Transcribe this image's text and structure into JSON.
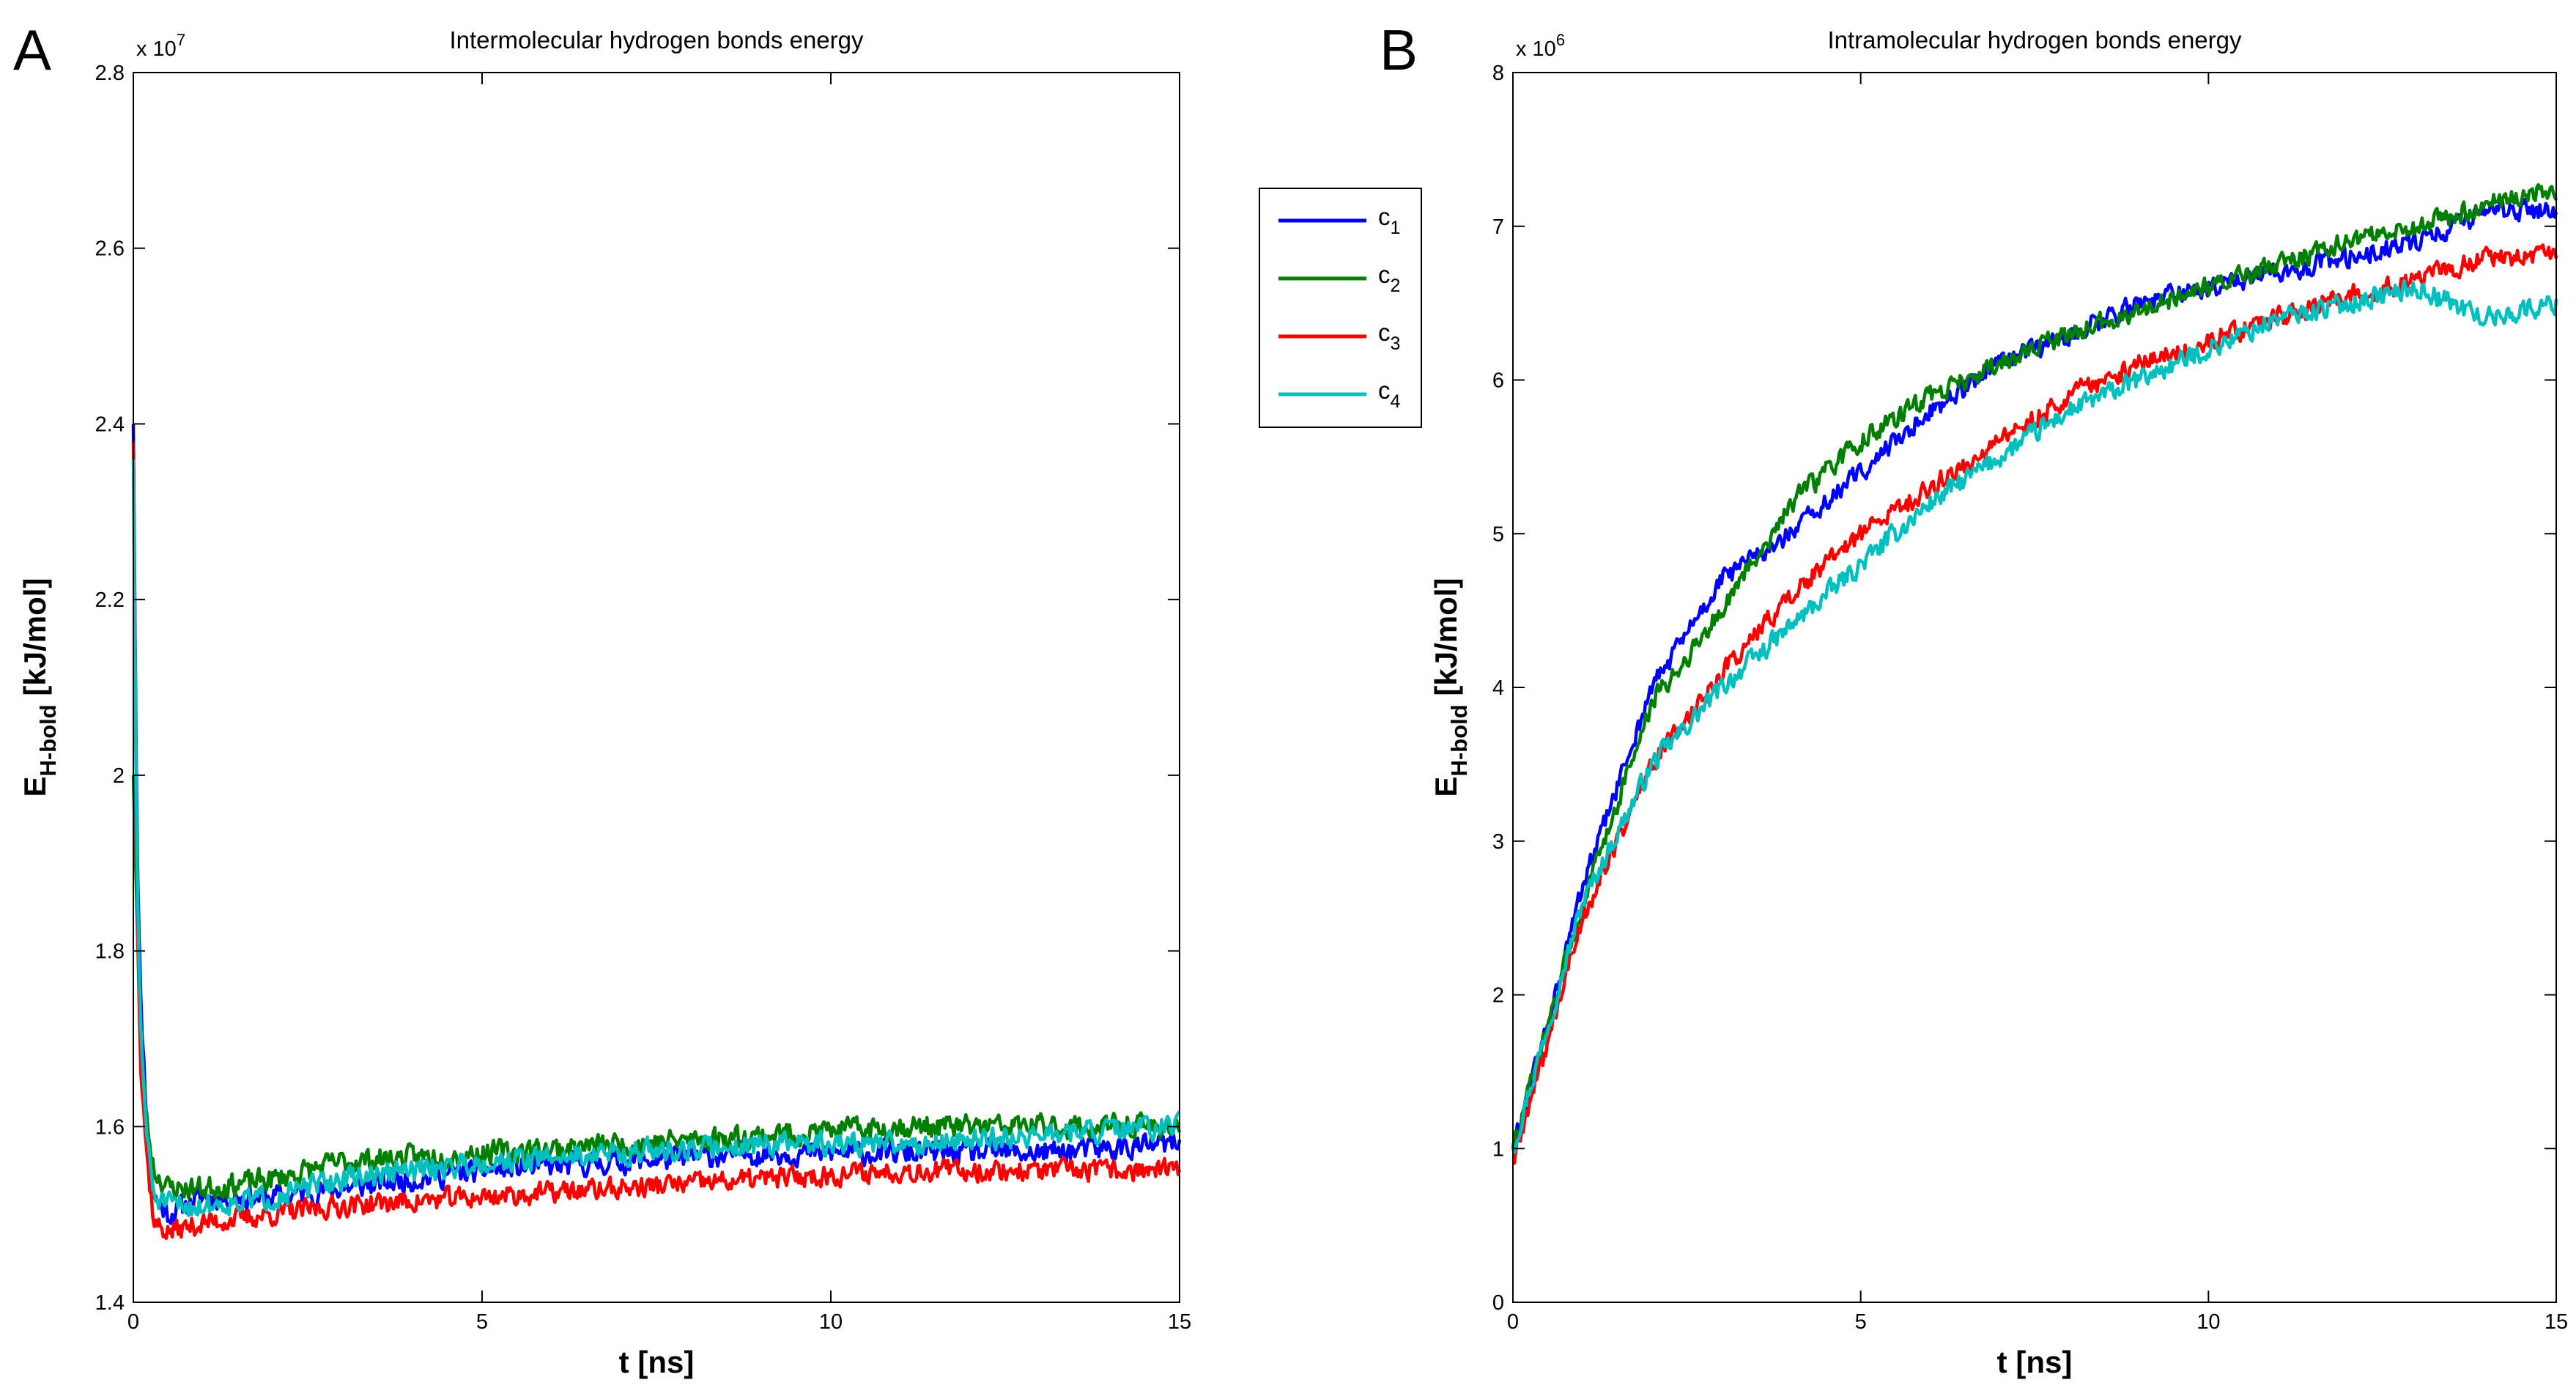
{
  "chart_data": [
    {
      "type": "line",
      "panel_label": "A",
      "title": "Intermolecular hydrogen bonds energy",
      "xlabel": "t [ns]",
      "ylabel_main": "E",
      "ylabel_sub": "H-bold",
      "ylabel_unit": " [kJ/mol]",
      "multiplier_base": "x 10",
      "multiplier_exp": "7",
      "xlim": [
        0,
        15
      ],
      "ylim": [
        1.4,
        2.8
      ],
      "xticks": [
        0,
        5,
        10,
        15
      ],
      "xtick_labels": [
        "0",
        "5",
        "10",
        "15"
      ],
      "yticks": [
        1.4,
        1.6,
        1.8,
        2.0,
        2.2,
        2.4,
        2.6,
        2.8
      ],
      "ytick_labels": [
        "1.4",
        "1.6",
        "1.8",
        "2",
        "2.2",
        "2.4",
        "2.6",
        "2.8"
      ],
      "series": [
        {
          "name": "c1",
          "color": "#0000ff",
          "noise": 0.012,
          "seed": 11,
          "points": [
            [
              0,
              2.4
            ],
            [
              0.05,
              1.95
            ],
            [
              0.1,
              1.75
            ],
            [
              0.2,
              1.6
            ],
            [
              0.3,
              1.52
            ],
            [
              0.5,
              1.5
            ],
            [
              1,
              1.52
            ],
            [
              2,
              1.52
            ],
            [
              3,
              1.53
            ],
            [
              5,
              1.55
            ],
            [
              7,
              1.56
            ],
            [
              9,
              1.57
            ],
            [
              11,
              1.57
            ],
            [
              13,
              1.57
            ],
            [
              15,
              1.58
            ]
          ]
        },
        {
          "name": "c2",
          "color": "#007f00",
          "noise": 0.012,
          "seed": 23,
          "points": [
            [
              0,
              2.0
            ],
            [
              0.05,
              1.85
            ],
            [
              0.1,
              1.7
            ],
            [
              0.2,
              1.6
            ],
            [
              0.3,
              1.55
            ],
            [
              0.5,
              1.53
            ],
            [
              1,
              1.53
            ],
            [
              2,
              1.54
            ],
            [
              3,
              1.56
            ],
            [
              5,
              1.57
            ],
            [
              7,
              1.58
            ],
            [
              9,
              1.59
            ],
            [
              11,
              1.6
            ],
            [
              13,
              1.6
            ],
            [
              15,
              1.6
            ]
          ]
        },
        {
          "name": "c3",
          "color": "#ff0000",
          "noise": 0.011,
          "seed": 37,
          "points": [
            [
              0,
              2.38
            ],
            [
              0.05,
              1.9
            ],
            [
              0.1,
              1.68
            ],
            [
              0.2,
              1.56
            ],
            [
              0.3,
              1.49
            ],
            [
              0.5,
              1.48
            ],
            [
              1,
              1.49
            ],
            [
              2,
              1.5
            ],
            [
              3,
              1.51
            ],
            [
              5,
              1.52
            ],
            [
              7,
              1.53
            ],
            [
              9,
              1.54
            ],
            [
              11,
              1.55
            ],
            [
              13,
              1.55
            ],
            [
              15,
              1.55
            ]
          ]
        },
        {
          "name": "c4",
          "color": "#00bfbf",
          "noise": 0.012,
          "seed": 51,
          "points": [
            [
              0,
              2.36
            ],
            [
              0.05,
              1.9
            ],
            [
              0.1,
              1.72
            ],
            [
              0.2,
              1.58
            ],
            [
              0.3,
              1.52
            ],
            [
              0.5,
              1.51
            ],
            [
              1,
              1.51
            ],
            [
              2,
              1.52
            ],
            [
              3,
              1.54
            ],
            [
              5,
              1.56
            ],
            [
              7,
              1.57
            ],
            [
              9,
              1.58
            ],
            [
              11,
              1.58
            ],
            [
              13,
              1.59
            ],
            [
              15,
              1.6
            ]
          ]
        }
      ]
    },
    {
      "type": "line",
      "panel_label": "B",
      "title": "Intramolecular hydrogen bonds energy",
      "xlabel": "t [ns]",
      "ylabel_main": "E",
      "ylabel_sub": "H-bold",
      "ylabel_unit": " [kJ/mol]",
      "multiplier_base": "x 10",
      "multiplier_exp": "6",
      "xlim": [
        0,
        15
      ],
      "ylim": [
        0,
        8
      ],
      "xticks": [
        0,
        5,
        10,
        15
      ],
      "xtick_labels": [
        "0",
        "5",
        "10",
        "15"
      ],
      "yticks": [
        0,
        1,
        2,
        3,
        4,
        5,
        6,
        7,
        8
      ],
      "ytick_labels": [
        "0",
        "1",
        "2",
        "3",
        "4",
        "5",
        "6",
        "7",
        "8"
      ],
      "series": [
        {
          "name": "c1",
          "color": "#0000ff",
          "noise": 0.06,
          "seed": 61,
          "points": [
            [
              0,
              1.0
            ],
            [
              0.5,
              1.8
            ],
            [
              1,
              2.7
            ],
            [
              2,
              4.0
            ],
            [
              3,
              4.7
            ],
            [
              4,
              5.0
            ],
            [
              5,
              5.4
            ],
            [
              6,
              5.8
            ],
            [
              7,
              6.1
            ],
            [
              8,
              6.3
            ],
            [
              9,
              6.5
            ],
            [
              10,
              6.6
            ],
            [
              11,
              6.7
            ],
            [
              12,
              6.8
            ],
            [
              13,
              6.9
            ],
            [
              14,
              7.1
            ],
            [
              15,
              7.1
            ]
          ]
        },
        {
          "name": "c2",
          "color": "#007f00",
          "noise": 0.06,
          "seed": 73,
          "points": [
            [
              0,
              1.0
            ],
            [
              0.5,
              1.8
            ],
            [
              1,
              2.6
            ],
            [
              2,
              3.9
            ],
            [
              3,
              4.5
            ],
            [
              4,
              5.2
            ],
            [
              5,
              5.6
            ],
            [
              6,
              5.9
            ],
            [
              7,
              6.1
            ],
            [
              8,
              6.3
            ],
            [
              9,
              6.45
            ],
            [
              10,
              6.6
            ],
            [
              11,
              6.75
            ],
            [
              12,
              6.9
            ],
            [
              13,
              7.0
            ],
            [
              14,
              7.15
            ],
            [
              15,
              7.25
            ]
          ]
        },
        {
          "name": "c3",
          "color": "#ff0000",
          "noise": 0.06,
          "seed": 89,
          "points": [
            [
              0,
              0.9
            ],
            [
              0.5,
              1.7
            ],
            [
              1,
              2.5
            ],
            [
              2,
              3.5
            ],
            [
              3,
              4.1
            ],
            [
              4,
              4.6
            ],
            [
              5,
              5.0
            ],
            [
              6,
              5.3
            ],
            [
              7,
              5.6
            ],
            [
              8,
              5.9
            ],
            [
              9,
              6.1
            ],
            [
              10,
              6.25
            ],
            [
              11,
              6.4
            ],
            [
              12,
              6.55
            ],
            [
              13,
              6.65
            ],
            [
              14,
              6.8
            ],
            [
              15,
              6.8
            ]
          ]
        },
        {
          "name": "c4",
          "color": "#00bfbf",
          "noise": 0.06,
          "seed": 97,
          "points": [
            [
              0,
              1.0
            ],
            [
              0.5,
              1.8
            ],
            [
              1,
              2.6
            ],
            [
              2,
              3.5
            ],
            [
              3,
              4.0
            ],
            [
              4,
              4.4
            ],
            [
              5,
              4.8
            ],
            [
              6,
              5.2
            ],
            [
              7,
              5.5
            ],
            [
              8,
              5.8
            ],
            [
              9,
              6.0
            ],
            [
              10,
              6.2
            ],
            [
              11,
              6.4
            ],
            [
              12,
              6.5
            ],
            [
              13,
              6.6
            ],
            [
              14,
              6.4
            ],
            [
              15,
              6.5
            ]
          ]
        }
      ]
    }
  ],
  "legend": {
    "items": [
      {
        "label": "c",
        "sub": "1",
        "color": "#0000ff"
      },
      {
        "label": "c",
        "sub": "2",
        "color": "#007f00"
      },
      {
        "label": "c",
        "sub": "3",
        "color": "#ff0000"
      },
      {
        "label": "c",
        "sub": "4",
        "color": "#00bfbf"
      }
    ]
  }
}
